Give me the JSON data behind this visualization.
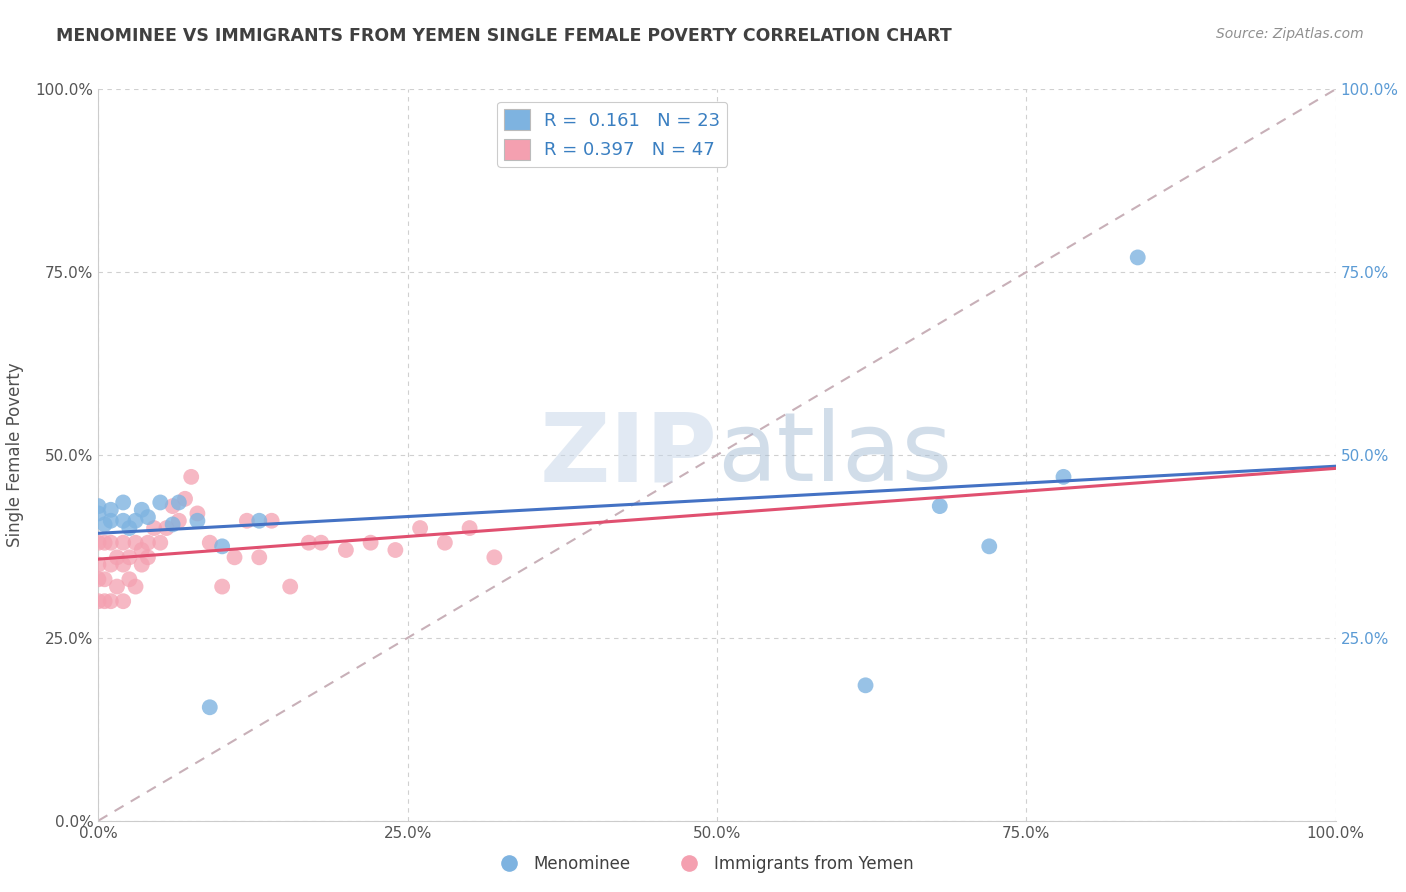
{
  "title": "MENOMINEE VS IMMIGRANTS FROM YEMEN SINGLE FEMALE POVERTY CORRELATION CHART",
  "source": "Source: ZipAtlas.com",
  "ylabel": "Single Female Poverty",
  "xlabel": "",
  "legend1_label": "Menominee",
  "legend2_label": "Immigrants from Yemen",
  "R1": 0.161,
  "N1": 23,
  "R2": 0.397,
  "N2": 47,
  "menominee_x": [
    0.0,
    0.0,
    0.005,
    0.01,
    0.01,
    0.02,
    0.02,
    0.025,
    0.03,
    0.035,
    0.04,
    0.05,
    0.06,
    0.065,
    0.08,
    0.09,
    0.1,
    0.13,
    0.62,
    0.68,
    0.72,
    0.78,
    0.84
  ],
  "menominee_y": [
    0.42,
    0.43,
    0.405,
    0.41,
    0.425,
    0.41,
    0.435,
    0.4,
    0.41,
    0.425,
    0.415,
    0.435,
    0.405,
    0.435,
    0.41,
    0.155,
    0.375,
    0.41,
    0.185,
    0.43,
    0.375,
    0.47,
    0.77
  ],
  "yemen_x": [
    0.0,
    0.0,
    0.0,
    0.0,
    0.005,
    0.005,
    0.005,
    0.01,
    0.01,
    0.01,
    0.015,
    0.015,
    0.02,
    0.02,
    0.02,
    0.025,
    0.025,
    0.03,
    0.03,
    0.035,
    0.035,
    0.04,
    0.04,
    0.045,
    0.05,
    0.055,
    0.06,
    0.065,
    0.07,
    0.075,
    0.08,
    0.09,
    0.1,
    0.11,
    0.12,
    0.13,
    0.14,
    0.155,
    0.17,
    0.18,
    0.2,
    0.22,
    0.24,
    0.26,
    0.28,
    0.3,
    0.32
  ],
  "yemen_y": [
    0.3,
    0.33,
    0.35,
    0.38,
    0.3,
    0.33,
    0.38,
    0.3,
    0.35,
    0.38,
    0.32,
    0.36,
    0.3,
    0.35,
    0.38,
    0.33,
    0.36,
    0.32,
    0.38,
    0.35,
    0.37,
    0.36,
    0.38,
    0.4,
    0.38,
    0.4,
    0.43,
    0.41,
    0.44,
    0.47,
    0.42,
    0.38,
    0.32,
    0.36,
    0.41,
    0.36,
    0.41,
    0.32,
    0.38,
    0.38,
    0.37,
    0.38,
    0.37,
    0.4,
    0.38,
    0.4,
    0.36
  ],
  "menominee_color": "#7eb3e0",
  "yemen_color": "#f4a0b0",
  "menominee_line_color": "#4472c4",
  "yemen_line_color": "#e05070",
  "diagonal_color": "#c8b0b8",
  "grid_color": "#d0d0d0",
  "title_color": "#404040",
  "source_color": "#909090",
  "xlim": [
    0.0,
    1.0
  ],
  "ylim": [
    0.0,
    1.0
  ],
  "xtick_vals": [
    0.0,
    0.25,
    0.5,
    0.75,
    1.0
  ],
  "ytick_vals": [
    0.0,
    0.25,
    0.5,
    0.75,
    1.0
  ],
  "xtick_labels": [
    "0.0%",
    "25.0%",
    "50.0%",
    "75.0%",
    "100.0%"
  ],
  "ytick_labels": [
    "0.0%",
    "25.0%",
    "50.0%",
    "75.0%",
    "100.0%"
  ],
  "right_ytick_labels": [
    "",
    "25.0%",
    "50.0%",
    "75.0%",
    "100.0%"
  ]
}
